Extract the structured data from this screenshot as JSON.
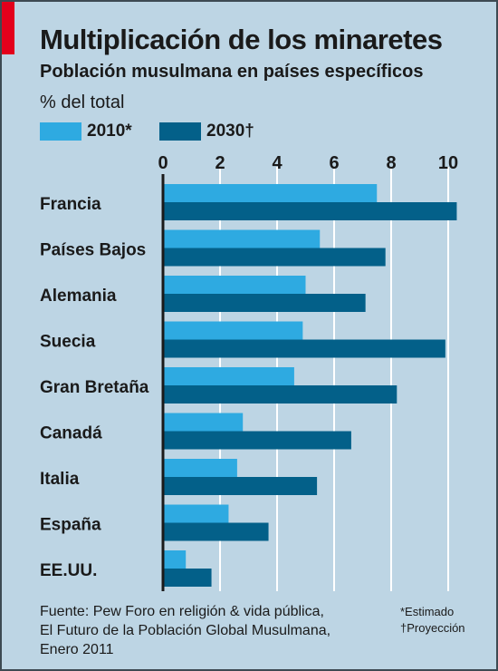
{
  "title": "Multiplicación de los minaretes",
  "subtitle": "Población musulmana en países específicos",
  "unit": "% del total",
  "legend": [
    {
      "label": "2010*",
      "color": "#2eaae1"
    },
    {
      "label": "2030†",
      "color": "#036089"
    }
  ],
  "source": "Fuente: Pew Foro en religión & vida pública, El Futuro de la Población Global Musulmana, Enero 2011",
  "notes": [
    "*Estimado",
    "†Proyección"
  ],
  "colors": {
    "background": "#bdd5e4",
    "grid": "#ffffff",
    "axis": "#1a1a1a",
    "accent": "#e3001b"
  },
  "chart_data": {
    "type": "bar",
    "orientation": "horizontal",
    "categories": [
      "Francia",
      "Países Bajos",
      "Alemania",
      "Suecia",
      "Gran Bretaña",
      "Canadá",
      "Italia",
      "España",
      "EE.UU."
    ],
    "series": [
      {
        "name": "2010*",
        "values": [
          7.5,
          5.5,
          5.0,
          4.9,
          4.6,
          2.8,
          2.6,
          2.3,
          0.8
        ]
      },
      {
        "name": "2030†",
        "values": [
          10.3,
          7.8,
          7.1,
          9.9,
          8.2,
          6.6,
          5.4,
          3.7,
          1.7
        ]
      }
    ],
    "xlim": [
      0,
      11
    ],
    "xticks": [
      "0",
      "2",
      "4",
      "6",
      "8",
      "10"
    ],
    "grid": true,
    "legend_position": "top-left"
  }
}
